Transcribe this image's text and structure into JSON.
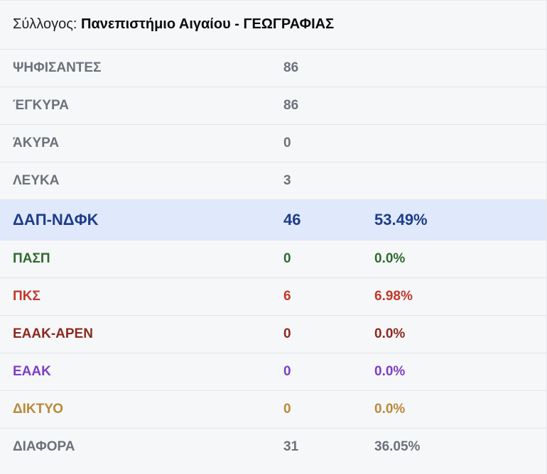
{
  "header": {
    "prefix": "Σύλλογος:",
    "name": "Πανεπιστήμιο Αιγαίου - ΓΕΩΓΡΑΦΙΑΣ"
  },
  "stats": [
    {
      "label": "ΨΗΦΙΣΑΝΤΕΣ",
      "value": "86"
    },
    {
      "label": "ΈΓΚΥΡΑ",
      "value": "86"
    },
    {
      "label": "ΆΚΥΡΑ",
      "value": "0"
    },
    {
      "label": "ΛΕΥΚΑ",
      "value": "3"
    }
  ],
  "parties": [
    {
      "name": "ΔΑΠ-ΝΔΦΚ",
      "votes": "46",
      "percent": "53.49%",
      "color": "#1f3c88",
      "highlight_bg": "#dfe9fb"
    },
    {
      "name": "ΠΑΣΠ",
      "votes": "0",
      "percent": "0.0%",
      "color": "#2e6b2e"
    },
    {
      "name": "ΠΚΣ",
      "votes": "6",
      "percent": "6.98%",
      "color": "#c0392b"
    },
    {
      "name": "ΕΑΑΚ-ΑΡΕΝ",
      "votes": "0",
      "percent": "0.0%",
      "color": "#8b2a1f"
    },
    {
      "name": "ΕΑΑΚ",
      "votes": "0",
      "percent": "0.0%",
      "color": "#7d3fc4"
    },
    {
      "name": "ΔΙΚΤΥΟ",
      "votes": "0",
      "percent": "0.0%",
      "color": "#b98a3a"
    },
    {
      "name": "ΔΙΑΦΟΡΑ",
      "votes": "31",
      "percent": "36.05%",
      "color": "#6c717b"
    }
  ]
}
